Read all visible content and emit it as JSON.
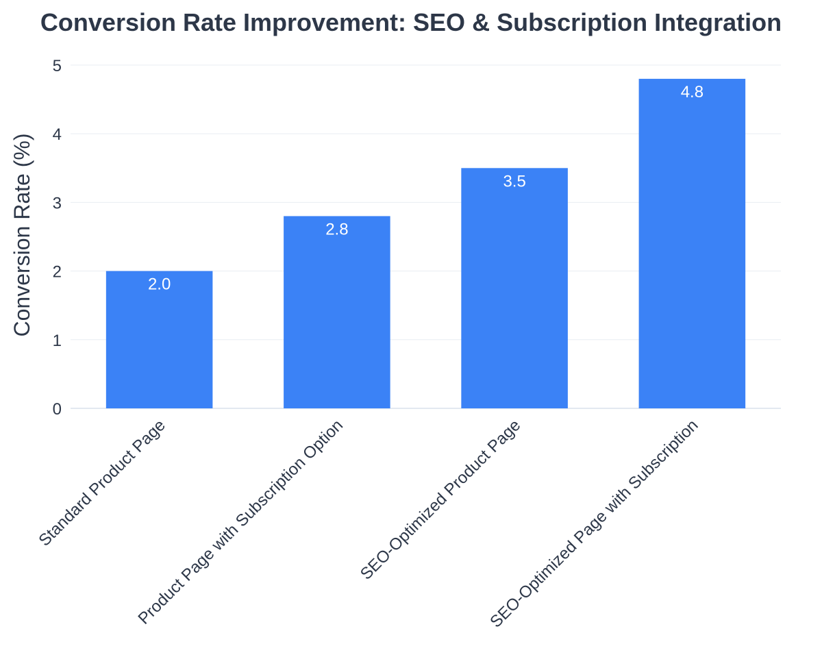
{
  "chart_data": {
    "type": "bar",
    "title": "Conversion Rate Improvement: SEO & Subscription Integration",
    "xlabel": "",
    "ylabel": "Conversion Rate (%)",
    "categories": [
      "Standard Product Page",
      "Product Page with Subscription Option",
      "SEO-Optimized Product Page",
      "SEO-Optimized Page with Subscription"
    ],
    "values": [
      2.0,
      2.8,
      3.5,
      4.8
    ],
    "data_labels": [
      "2.0",
      "2.8",
      "3.5",
      "4.8"
    ],
    "ylim": [
      0,
      5
    ],
    "y_ticks": [
      "0",
      "1",
      "2",
      "3",
      "4",
      "5"
    ],
    "grid": true,
    "legend": "none",
    "bar_color": "#3b82f6"
  }
}
